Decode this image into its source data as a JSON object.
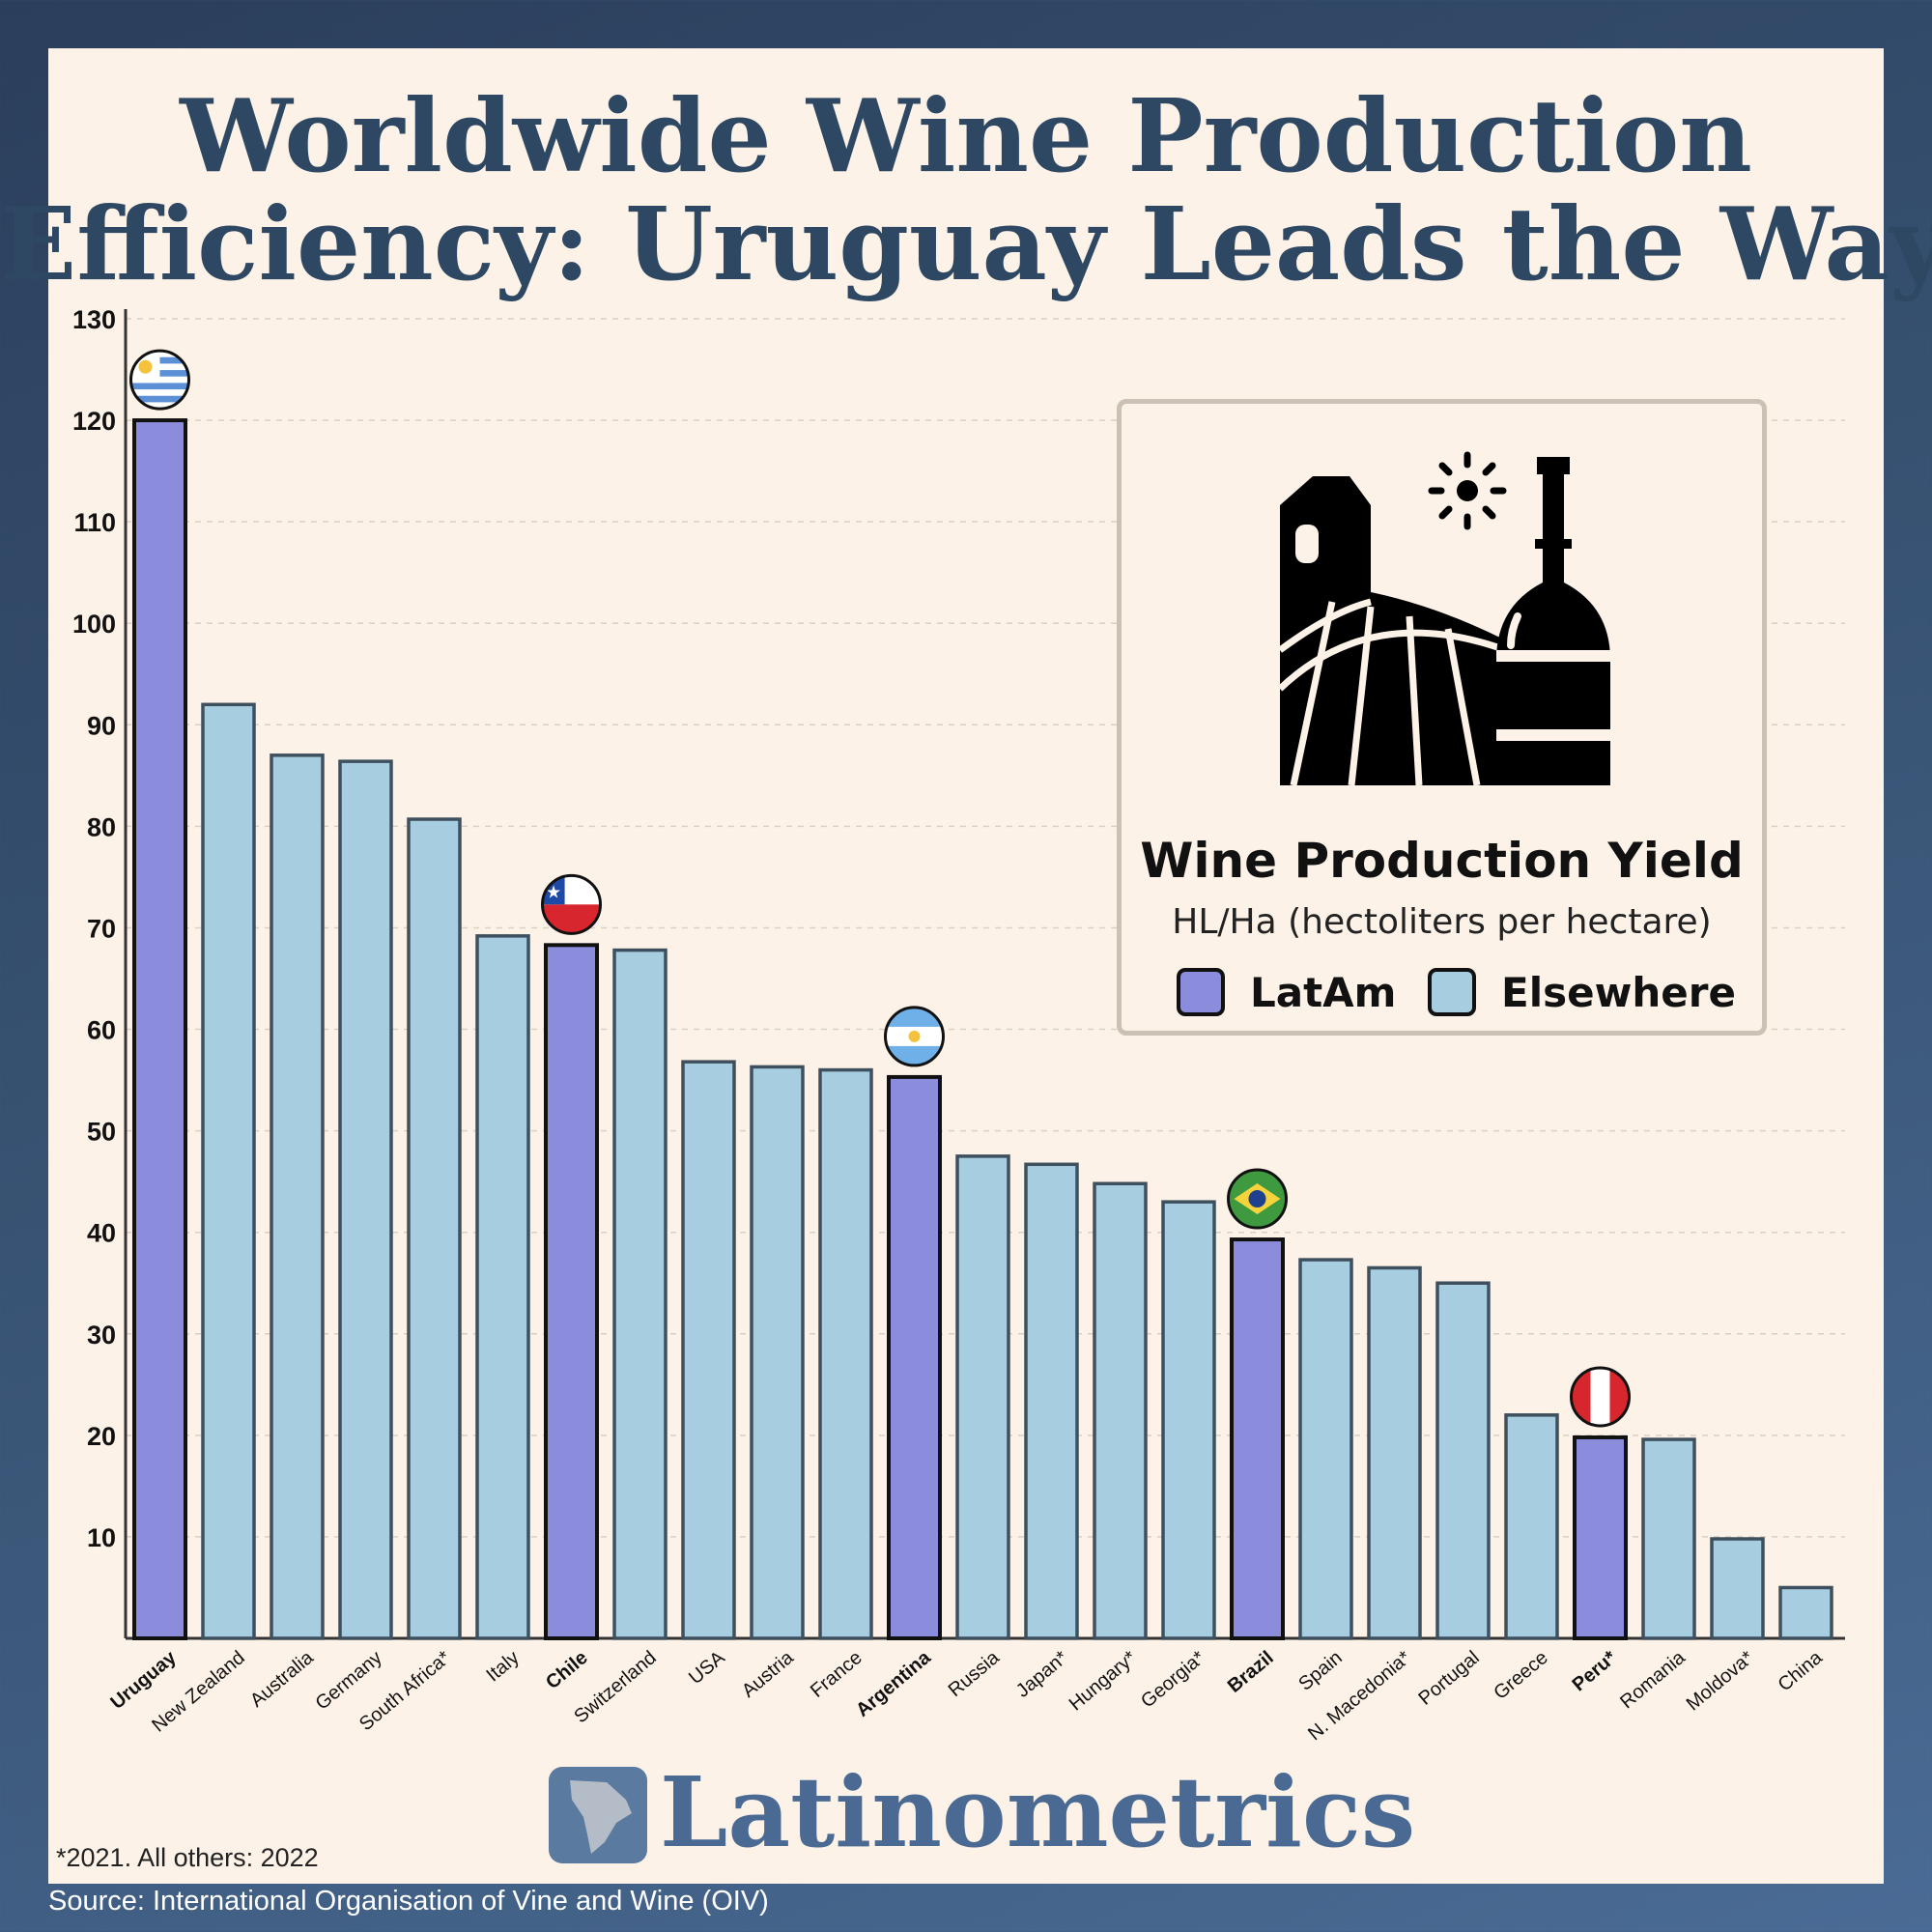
{
  "title_line1": "Worldwide Wine Production",
  "title_line2": "Efficiency: Uruguay Leads the Way",
  "legend": {
    "title": "Wine Production Yield",
    "subtitle": "HL/Ha (hectoliters per hectare)",
    "items": [
      {
        "label": "LatAm",
        "color": "#8b8cdb"
      },
      {
        "label": "Elsewhere",
        "color": "#a7cde0"
      }
    ],
    "icon": "vineyard-farm-wine-bottle-icon"
  },
  "brand": "Latinometrics",
  "footnote": "*2021. All others: 2022",
  "source": "Source: International Organisation of Vine and Wine (OIV)",
  "colors": {
    "latam": "#8b8cdb",
    "elsewhere": "#a7cde0",
    "title": "#2e4863",
    "background": "#fdf2e7"
  },
  "chart_data": {
    "type": "bar",
    "ylim": [
      0,
      130
    ],
    "yticks": [
      10,
      20,
      30,
      40,
      50,
      60,
      70,
      80,
      90,
      100,
      110,
      120,
      130
    ],
    "grid": true,
    "categories": [
      "Uruguay",
      "New Zealand",
      "Australia",
      "Germany",
      "South Africa*",
      "Italy",
      "Chile",
      "Switzerland",
      "USA",
      "Austria",
      "France",
      "Argentina",
      "Russia",
      "Japan*",
      "Hungary*",
      "Georgia*",
      "Brazil",
      "Spain",
      "N. Macedonia*",
      "Portugal",
      "Greece",
      "Peru*",
      "Romania",
      "Moldova*",
      "China"
    ],
    "values": [
      120,
      92,
      87,
      86.4,
      80.7,
      69.2,
      68.3,
      67.8,
      56.8,
      56.3,
      56,
      55.3,
      47.5,
      46.7,
      44.8,
      43,
      39.3,
      37.3,
      36.5,
      35,
      22,
      19.8,
      19.6,
      9.8,
      5
    ],
    "group": [
      "LatAm",
      "Elsewhere",
      "Elsewhere",
      "Elsewhere",
      "Elsewhere",
      "Elsewhere",
      "LatAm",
      "Elsewhere",
      "Elsewhere",
      "Elsewhere",
      "Elsewhere",
      "LatAm",
      "Elsewhere",
      "Elsewhere",
      "Elsewhere",
      "Elsewhere",
      "LatAm",
      "Elsewhere",
      "Elsewhere",
      "Elsewhere",
      "Elsewhere",
      "LatAm",
      "Elsewhere",
      "Elsewhere",
      "Elsewhere"
    ],
    "flags": {
      "Uruguay": "uruguay-flag-icon",
      "Chile": "chile-flag-icon",
      "Argentina": "argentina-flag-icon",
      "Brazil": "brazil-flag-icon",
      "Peru*": "peru-flag-icon"
    },
    "legend_position": "top-right"
  }
}
